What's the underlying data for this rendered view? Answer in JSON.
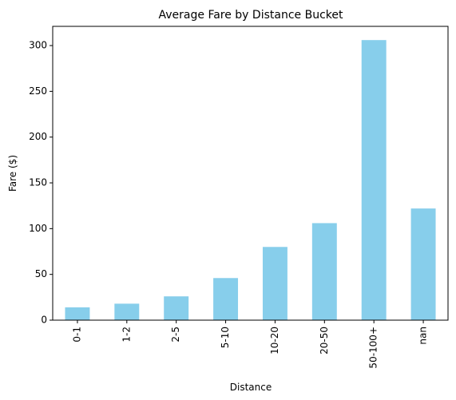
{
  "chart_data": {
    "type": "bar",
    "title": "Average Fare by Distance Bucket",
    "xlabel": "Distance",
    "ylabel": "Fare ($)",
    "categories": [
      "0-1",
      "1-2",
      "2-5",
      "5-10",
      "10-20",
      "20-50",
      "50-100+",
      "nan"
    ],
    "values": [
      14,
      18,
      26,
      46,
      80,
      106,
      306,
      122
    ],
    "ylim": [
      0,
      321
    ],
    "yticks": [
      0,
      50,
      100,
      150,
      200,
      250,
      300
    ],
    "grid": false,
    "legend": "none",
    "bar_color": "#87ceeb"
  }
}
